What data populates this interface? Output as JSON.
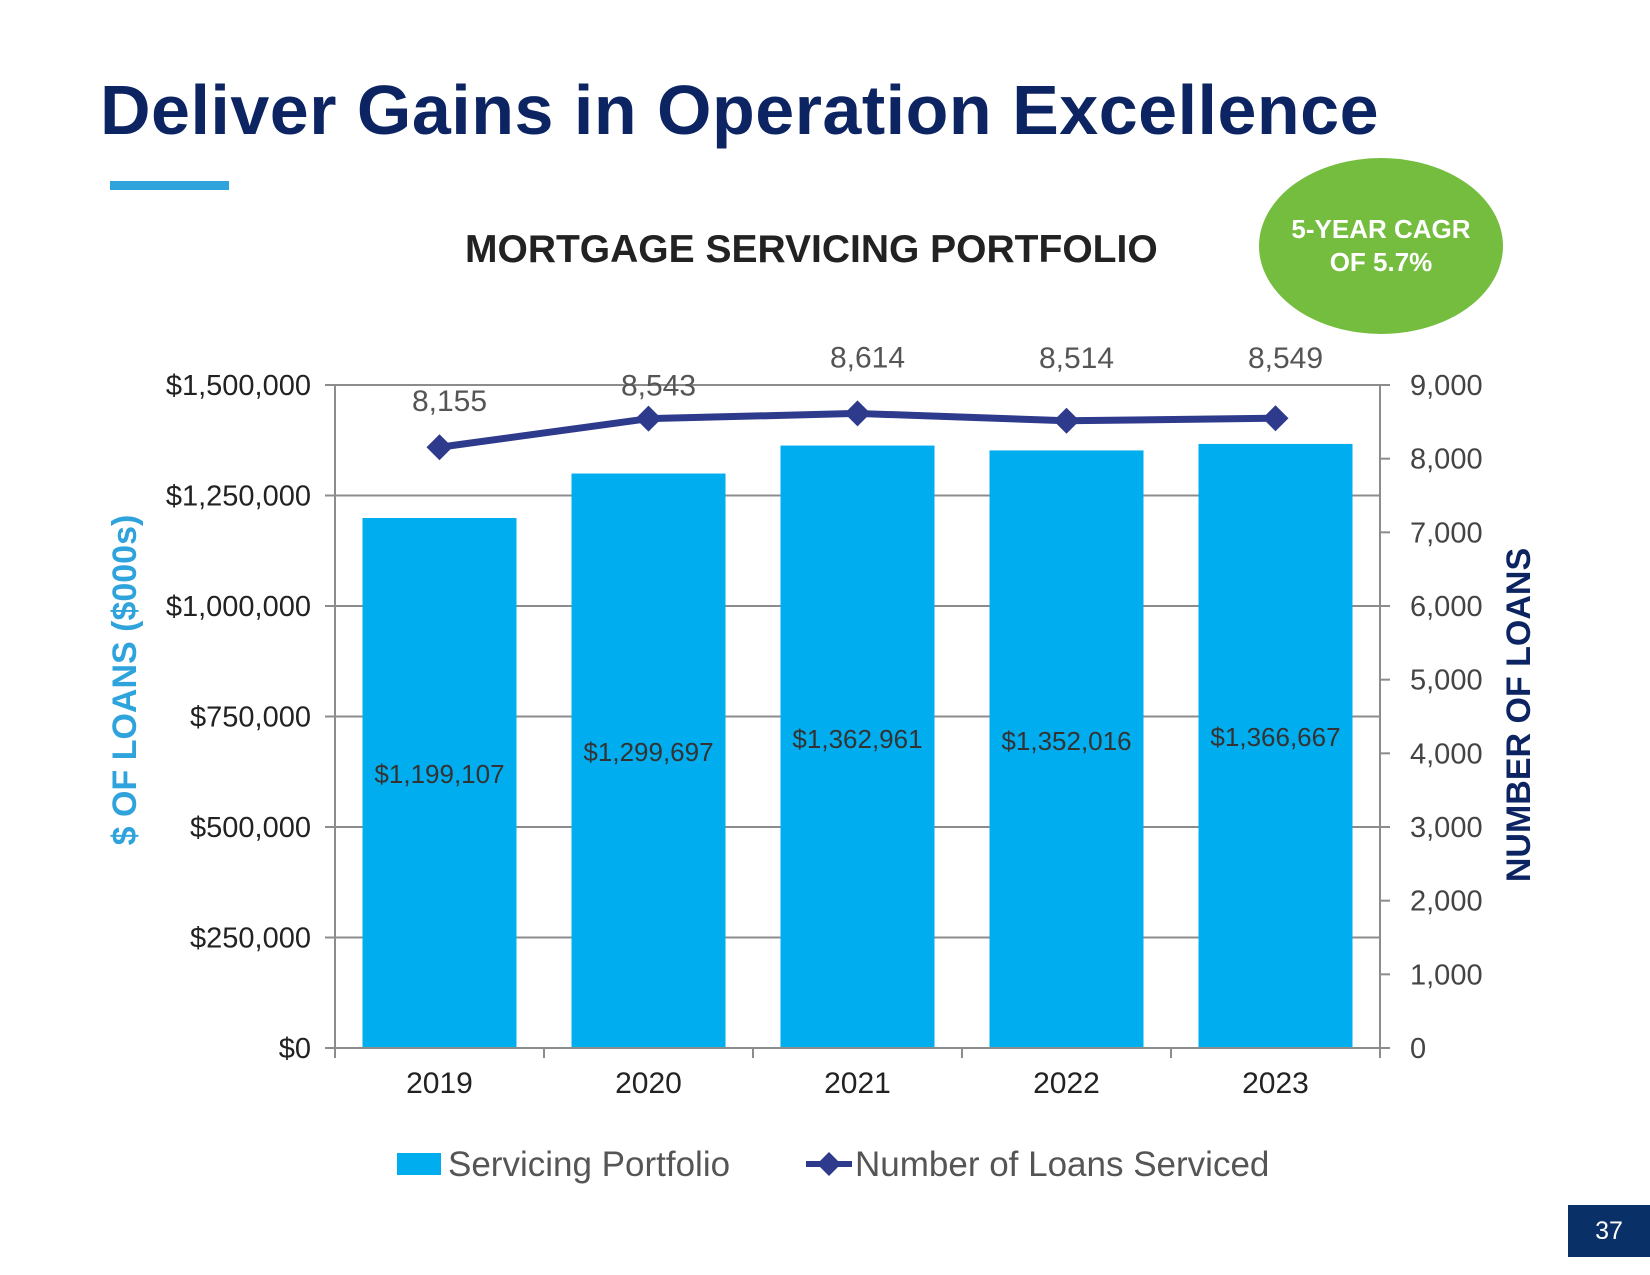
{
  "slide": {
    "title": "Deliver Gains in Operation Excellence",
    "page_number": "37",
    "cagr_line1": "5-YEAR CAGR",
    "cagr_line2": "OF  5.7%"
  },
  "colors": {
    "title": "#0c2461",
    "accent_rule": "#2ea3dc",
    "bar": "#00aeef",
    "line": "#2e3a8c",
    "badge": "#74bd3f",
    "left_axis_label": "#2ea3dc",
    "right_axis_label": "#0c2461",
    "page_box": "#0a3068"
  },
  "chart_data": {
    "type": "bar",
    "title": "MORTGAGE SERVICING PORTFOLIO",
    "categories": [
      "2019",
      "2020",
      "2021",
      "2022",
      "2023"
    ],
    "series": [
      {
        "name": "Servicing Portfolio",
        "type": "bar",
        "axis": "left",
        "values": [
          1199107,
          1299697,
          1362961,
          1352016,
          1366667
        ],
        "labels": [
          "$1,199,107",
          "$1,299,697",
          "$1,362,961",
          "$1,352,016",
          "$1,366,667"
        ]
      },
      {
        "name": "Number of Loans Serviced",
        "type": "line",
        "axis": "right",
        "values": [
          8155,
          8543,
          8614,
          8514,
          8549
        ],
        "labels": [
          "8,155",
          "8,543",
          "8,614",
          "8,514",
          "8,549"
        ]
      }
    ],
    "ylabel": "$ OF LOANS ($000s)",
    "y2label": "NUMBER OF LOANS",
    "ylim": [
      0,
      1500000
    ],
    "y2lim": [
      0,
      9000
    ],
    "yticks": [
      "$0",
      "$250,000",
      "$500,000",
      "$750,000",
      "$1,000,000",
      "$1,250,000",
      "$1,500,000"
    ],
    "y2ticks": [
      "0",
      "1,000",
      "2,000",
      "3,000",
      "4,000",
      "5,000",
      "6,000",
      "7,000",
      "8,000",
      "9,000"
    ],
    "grid": true,
    "legend": "bottom-center"
  }
}
